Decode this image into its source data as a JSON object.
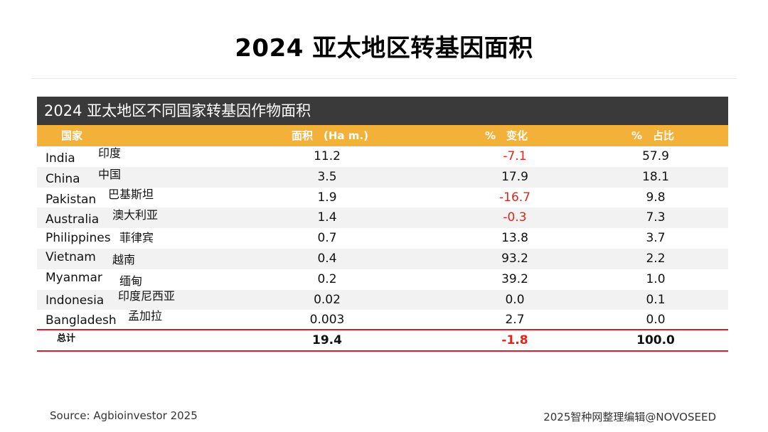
{
  "title": "2024 亚太地区转基因面积",
  "table_title": "2024 亚太地区不同国家转基因作物面积",
  "columns": {
    "country": "国家",
    "area": "面积　(Ha m.)",
    "change": "%　变化",
    "share": "%　占比"
  },
  "rows": [
    {
      "en": "India",
      "cn": "印度",
      "area": "11.2",
      "change": "-7.1",
      "share": "57.9",
      "negative": true
    },
    {
      "en": "China",
      "cn": "中国",
      "area": "3.5",
      "change": "17.9",
      "share": "18.1",
      "negative": false
    },
    {
      "en": "Pakistan",
      "cn": "巴基斯坦",
      "area": "1.9",
      "change": "-16.7",
      "share": "9.8",
      "negative": true
    },
    {
      "en": "Australia",
      "cn": "澳大利亚",
      "area": "1.4",
      "change": "-0.3",
      "share": "7.3",
      "negative": true
    },
    {
      "en": "Philippines",
      "cn": "菲律宾",
      "area": "0.7",
      "change": "13.8",
      "share": "3.7",
      "negative": false
    },
    {
      "en": "Vietnam",
      "cn": "越南",
      "area": "0.4",
      "change": "93.2",
      "share": "2.2",
      "negative": false
    },
    {
      "en": "Myanmar",
      "cn": "缅甸",
      "area": "0.2",
      "change": "39.2",
      "share": "1.0",
      "negative": false
    },
    {
      "en": "Indonesia",
      "cn": "印度尼西亚",
      "area": "0.02",
      "change": "0.0",
      "share": "0.1",
      "negative": false
    },
    {
      "en": "Bangladesh",
      "cn": "孟加拉",
      "area": "0.003",
      "change": "2.7",
      "share": "0.0",
      "negative": false
    }
  ],
  "total": {
    "label": "总计",
    "area": "19.4",
    "change": "-1.8",
    "share": "100.0"
  },
  "footer": {
    "source": "Source: Agbioinvestor 2025",
    "credit": "2025智种网整理编辑@NOVOSEED"
  },
  "colors": {
    "header_bar": "#3a3a3a",
    "accent": "#f3b13a",
    "negative": "#e0251b",
    "rule": "#d81e2a"
  }
}
